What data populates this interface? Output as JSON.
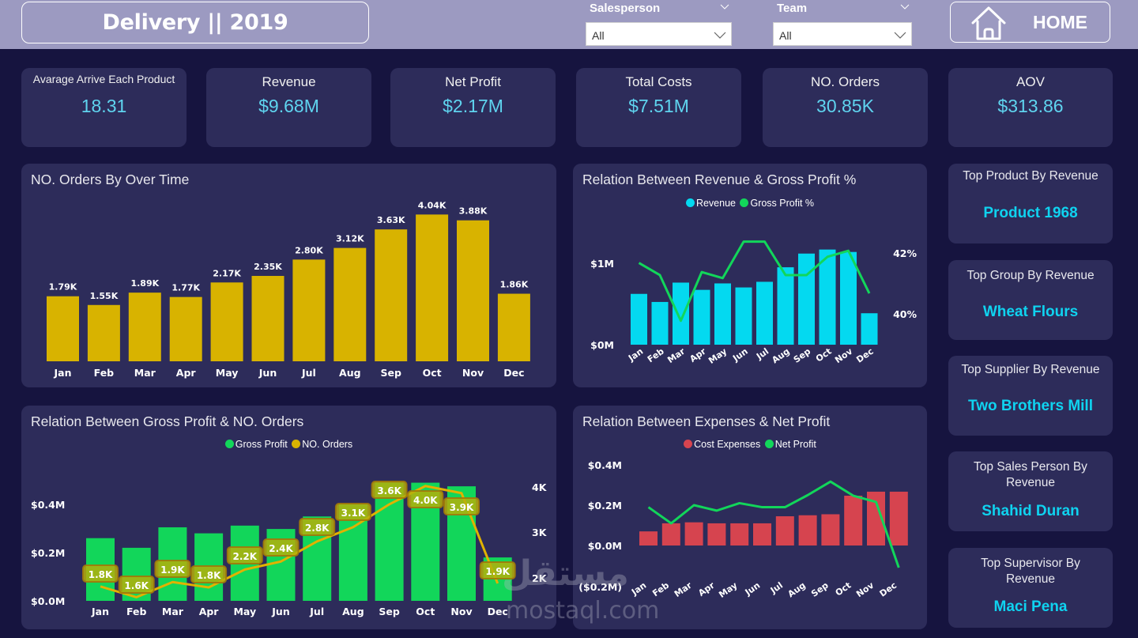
{
  "header": {
    "title": "Delivery || 2019",
    "home_label": "HOME",
    "slicers": [
      {
        "label": "Salesperson",
        "value": "All"
      },
      {
        "label": "Team",
        "value": "All"
      }
    ]
  },
  "kpis": [
    {
      "title": "Avarage Arrive Each Product",
      "value": "18.31"
    },
    {
      "title": "Revenue",
      "value": "$9.68M"
    },
    {
      "title": "Net Profit",
      "value": "$2.17M"
    },
    {
      "title": "Total Costs",
      "value": "$7.51M"
    },
    {
      "title": "NO. Orders",
      "value": "30.85K"
    },
    {
      "title": "AOV",
      "value": "$313.86"
    }
  ],
  "side_cards": [
    {
      "title": "Top Product By Revenue",
      "value": "Product 1968"
    },
    {
      "title": "Top Group By Revenue",
      "value": "Wheat Flours"
    },
    {
      "title": "Top Supplier By Revenue",
      "value": "Two Brothers Mill"
    },
    {
      "title": "Top Sales Person By Revenue",
      "value": "Shahid Duran"
    },
    {
      "title": "Top Supervisor By Revenue",
      "value": "Maci Pena"
    }
  ],
  "colors": {
    "background": "#16143f",
    "topbar": "#9c9ac1",
    "card": "#2d2c5a",
    "kpi_value": "#5fd4ef",
    "side_value": "#0fd3f0",
    "orders_bar": "#d8b300",
    "revenue_bar": "#04d9f0",
    "green": "#12d65a",
    "red": "#d6444f",
    "gold_line": "#e0b200"
  },
  "watermark": {
    "arabic": "مستقل",
    "latin": "mostaql.com"
  },
  "chart_data": [
    {
      "id": "orders_over_time",
      "type": "bar",
      "title": "NO. Orders By Over Time",
      "categories": [
        "Jan",
        "Feb",
        "Mar",
        "Apr",
        "May",
        "Jun",
        "Jul",
        "Aug",
        "Sep",
        "Oct",
        "Nov",
        "Dec"
      ],
      "values": [
        1790,
        1550,
        1890,
        1770,
        2170,
        2350,
        2800,
        3120,
        3630,
        4040,
        3880,
        1860
      ],
      "data_labels": [
        "1.79K",
        "1.55K",
        "1.89K",
        "1.77K",
        "2.17K",
        "2.35K",
        "2.80K",
        "3.12K",
        "3.63K",
        "4.04K",
        "3.88K",
        "1.86K"
      ],
      "xlabel": "",
      "ylabel": "",
      "ylim": [
        0,
        4300
      ],
      "grid": false
    },
    {
      "id": "revenue_gross_profit_pct",
      "type": "bar",
      "title": "Relation Between Revenue & Gross Profit %",
      "categories": [
        "Jan",
        "Feb",
        "Mar",
        "Apr",
        "May",
        "Jun",
        "Jul",
        "Aug",
        "Sep",
        "Oct",
        "Nov",
        "Dec"
      ],
      "series": [
        {
          "name": "Revenue",
          "type": "bar",
          "axis": "left",
          "values": [
            0.63,
            0.53,
            0.77,
            0.68,
            0.76,
            0.71,
            0.78,
            0.96,
            1.13,
            1.18,
            1.15,
            0.39
          ],
          "unit": "$M"
        },
        {
          "name": "Gross Profit %",
          "type": "line",
          "axis": "right",
          "values": [
            41.7,
            41.3,
            39.8,
            41.4,
            41.2,
            42.4,
            42.4,
            41.3,
            41.3,
            41.9,
            42.1,
            40.7
          ],
          "unit": "%"
        }
      ],
      "y_left": {
        "ticks": [
          "$0M",
          "$1M"
        ],
        "range": [
          0,
          1.25
        ]
      },
      "y_right": {
        "ticks": [
          "40%",
          "42%"
        ],
        "range": [
          38.9,
          42.8
        ]
      },
      "legend": "top-center",
      "grid": false
    },
    {
      "id": "gross_profit_orders",
      "type": "bar",
      "title": "Relation Between Gross Profit & NO. Orders",
      "categories": [
        "Jan",
        "Feb",
        "Mar",
        "Apr",
        "May",
        "Jun",
        "Jul",
        "Aug",
        "Sep",
        "Oct",
        "Nov",
        "Dec"
      ],
      "series": [
        {
          "name": "Gross Profit",
          "type": "bar",
          "axis": "left",
          "values": [
            0.26,
            0.22,
            0.305,
            0.28,
            0.312,
            0.298,
            0.35,
            0.4,
            0.49,
            0.49,
            0.475,
            0.18
          ],
          "unit": "$M"
        },
        {
          "name": "NO. Orders",
          "type": "line",
          "axis": "right",
          "values": [
            1790,
            1550,
            1890,
            1770,
            2170,
            2350,
            2800,
            3120,
            3630,
            4040,
            3880,
            1860
          ],
          "data_labels": [
            "1.8K",
            "1.6K",
            "1.9K",
            "1.8K",
            "2.2K",
            "2.4K",
            "2.8K",
            "3.1K",
            "3.6K",
            "4.0K",
            "3.9K",
            "1.9K"
          ]
        }
      ],
      "y_left": {
        "ticks": [
          "$0.0M",
          "$0.2M",
          "$0.4M"
        ],
        "range": [
          0,
          0.5
        ]
      },
      "y_right": {
        "ticks": [
          "2K",
          "3K",
          "4K"
        ],
        "range": [
          1500,
          4300
        ]
      },
      "legend": "top-center",
      "grid": false
    },
    {
      "id": "expenses_net_profit",
      "type": "bar",
      "title": "Relation Between Expenses & Net Profit",
      "categories": [
        "Jan",
        "Feb",
        "Mar",
        "Apr",
        "May",
        "Jun",
        "Jul",
        "Aug",
        "Sep",
        "Oct",
        "Nov",
        "Dec"
      ],
      "series": [
        {
          "name": "Cost Expenses",
          "type": "bar",
          "values": [
            0.07,
            0.11,
            0.115,
            0.11,
            0.11,
            0.11,
            0.145,
            0.15,
            0.155,
            0.247,
            0.267,
            0.267
          ],
          "unit": "$M"
        },
        {
          "name": "Net Profit",
          "type": "line",
          "values": [
            0.19,
            0.11,
            0.2,
            0.173,
            0.21,
            0.19,
            0.19,
            0.25,
            0.317,
            0.247,
            0.216,
            -0.11
          ],
          "unit": "$M"
        }
      ],
      "y": {
        "ticks": [
          "($0.2M)",
          "$0.0M",
          "$0.2M",
          "$0.4M"
        ],
        "range": [
          -0.2,
          0.4
        ]
      },
      "legend": "top-center",
      "grid": false
    }
  ]
}
